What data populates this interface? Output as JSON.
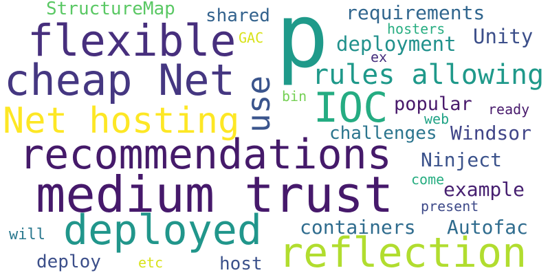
{
  "words": [
    {
      "text": "medium trust",
      "color": "#46196b"
    },
    {
      "text": "recommendations",
      "color": "#451a6a"
    },
    {
      "text": "reflection",
      "color": "#b1dd2f"
    },
    {
      "text": "deployed",
      "color": "#21968b"
    },
    {
      "text": "cheap Net",
      "color": "#453781"
    },
    {
      "text": "flexible",
      "color": "#472f7d"
    },
    {
      "text": "Net hosting",
      "color": "#fde725"
    },
    {
      "text": "p",
      "color": "#1f9a8a"
    },
    {
      "text": "IOC",
      "color": "#25ac82"
    },
    {
      "text": "use",
      "color": "#3a548c"
    },
    {
      "text": "rules allowing",
      "color": "#1f998a"
    },
    {
      "text": "requirements",
      "color": "#31668e"
    },
    {
      "text": "deployment",
      "color": "#21918c"
    },
    {
      "text": "Unity",
      "color": "#3c4f8a"
    },
    {
      "text": "popular",
      "color": "#48196b"
    },
    {
      "text": "challenges",
      "color": "#2b758e"
    },
    {
      "text": "Windsor",
      "color": "#404588"
    },
    {
      "text": "Ninject",
      "color": "#3b528b"
    },
    {
      "text": "example",
      "color": "#461f70"
    },
    {
      "text": "containers",
      "color": "#2f6c8e"
    },
    {
      "text": "Autofac",
      "color": "#2f6c8e"
    },
    {
      "text": "host",
      "color": "#3b518b"
    },
    {
      "text": "deploy",
      "color": "#3c4f8a"
    },
    {
      "text": "shared",
      "color": "#33628d"
    },
    {
      "text": "StructureMap",
      "color": "#5ac864"
    },
    {
      "text": "hosters",
      "color": "#27ad81"
    },
    {
      "text": "GAC",
      "color": "#d8e219"
    },
    {
      "text": "ex",
      "color": "#462f7d"
    },
    {
      "text": "bin",
      "color": "#75d054"
    },
    {
      "text": "web",
      "color": "#20a386"
    },
    {
      "text": "ready",
      "color": "#481a6c"
    },
    {
      "text": "come",
      "color": "#26ad81"
    },
    {
      "text": "present",
      "color": "#3e4a89"
    },
    {
      "text": "will",
      "color": "#2a788e"
    },
    {
      "text": "etc",
      "color": "#d8e219"
    }
  ]
}
